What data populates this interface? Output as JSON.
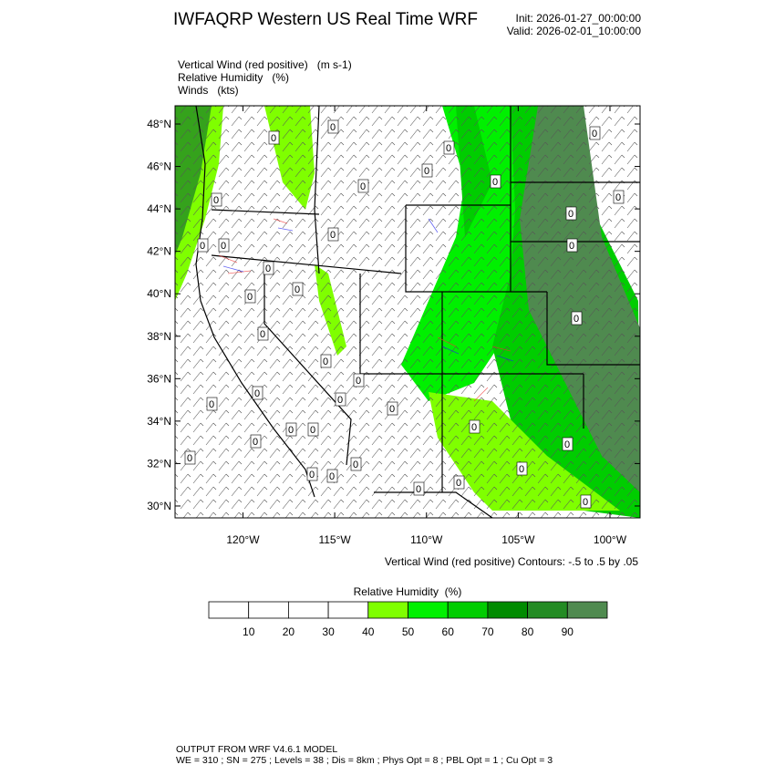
{
  "header": {
    "title": "IWFAQRP Western US Real Time WRF",
    "init": "Init: 2026-01-27_00:00:00",
    "valid": "Valid: 2026-02-01_10:00:00"
  },
  "fields": [
    "Vertical Wind (red positive)   (m s-1)",
    "Relative Humidity   (%)",
    "Winds   (kts)"
  ],
  "map": {
    "lat_range": [
      29.44,
      48.86
    ],
    "lon_range": [
      -123.7,
      -98.36
    ],
    "lat_ticks": [
      {
        "value": 30,
        "label": "30°N"
      },
      {
        "value": 32,
        "label": "32°N"
      },
      {
        "value": 34,
        "label": "34°N"
      },
      {
        "value": 36,
        "label": "36°N"
      },
      {
        "value": 38,
        "label": "38°N"
      },
      {
        "value": 40,
        "label": "40°N"
      },
      {
        "value": 42,
        "label": "42°N"
      },
      {
        "value": 44,
        "label": "44°N"
      },
      {
        "value": 46,
        "label": "46°N"
      },
      {
        "value": 48,
        "label": "48°N"
      }
    ],
    "lon_ticks": [
      {
        "value": -120,
        "label": "120°W"
      },
      {
        "value": -115,
        "label": "115°W"
      },
      {
        "value": -110,
        "label": "110°W"
      },
      {
        "value": -105,
        "label": "105°W"
      },
      {
        "value": -100,
        "label": "100°W"
      }
    ],
    "contour_label": "0",
    "contour_note": "Vertical Wind (red positive) Contours: -.5 to .5 by .05"
  },
  "colorbar": {
    "title": "Relative Humidity  (%)",
    "levels": [
      10,
      20,
      30,
      40,
      50,
      60,
      70,
      80,
      90
    ],
    "colors": [
      "#ffffff",
      "#ffffff",
      "#ffffff",
      "#ffffff",
      "#7fff00",
      "#00f000",
      "#00cd00",
      "#008b00",
      "#238b23",
      "#4f8a4f"
    ]
  },
  "footer": {
    "line1": "OUTPUT FROM WRF V4.6.1 MODEL",
    "line2": "WE = 310 ; SN = 275 ; Levels = 38 ; Dis = 8km ; Phys Opt = 8 ; PBL Opt = 1 ; Cu Opt = 3"
  }
}
